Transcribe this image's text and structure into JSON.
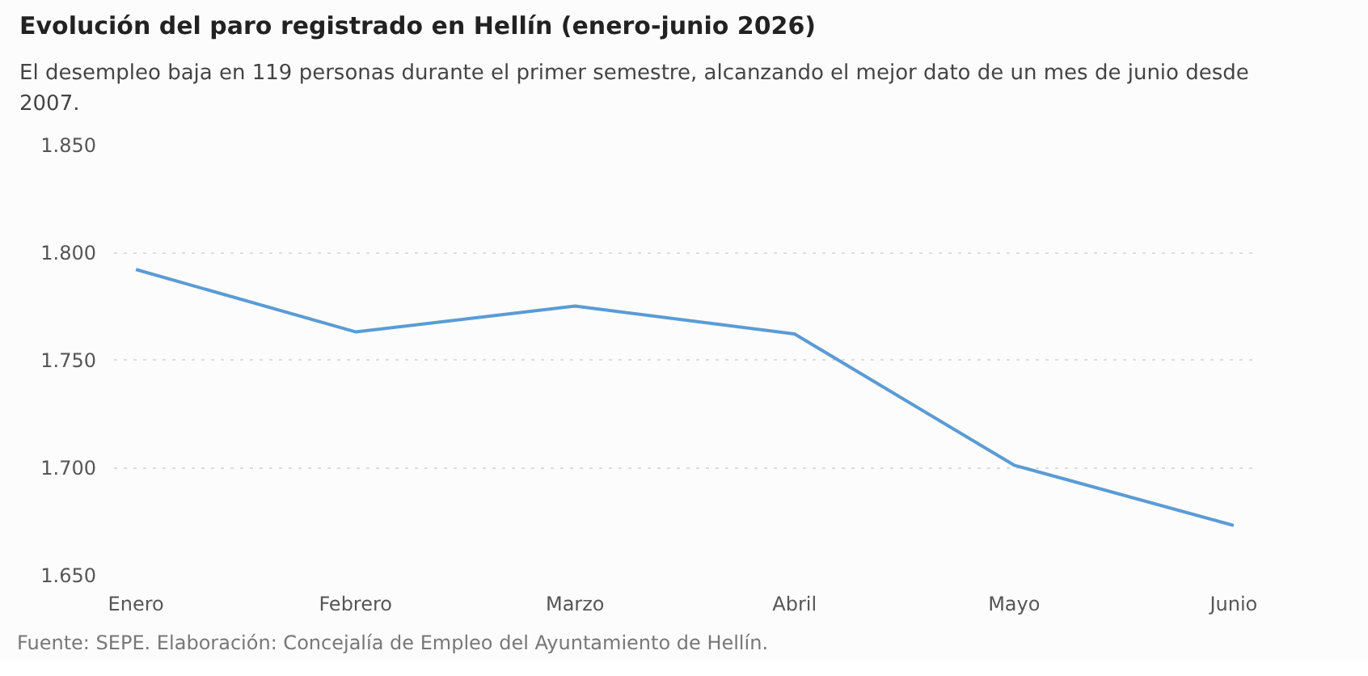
{
  "chart_data": {
    "type": "line",
    "title": "Evolución del paro registrado en Hellín (enero-junio 2026)",
    "subtitle": "El desempleo baja en 119 personas durante el primer semestre, alcanzando el mejor dato de un mes de junio desde 2007.",
    "categories": [
      "Enero",
      "Febrero",
      "Marzo",
      "Abril",
      "Mayo",
      "Junio"
    ],
    "series": [
      {
        "color": "#5b9bd5",
        "values": [
          1792,
          1763,
          1775,
          1762,
          1701,
          1673
        ]
      }
    ],
    "ylim": [
      1650,
      1850
    ],
    "yticks": [
      {
        "value": 1650,
        "label": "1.650"
      },
      {
        "value": 1700,
        "label": "1.700"
      },
      {
        "value": 1750,
        "label": "1.750"
      },
      {
        "value": 1800,
        "label": "1.800"
      },
      {
        "value": 1850,
        "label": "1.850"
      }
    ],
    "grid": "y",
    "marker": "none",
    "line_style": "solid",
    "annotations": [
      "Fuente: SEPE. Elaboración: Concejalía de Empleo del Ayuntamiento de Hellín."
    ]
  }
}
